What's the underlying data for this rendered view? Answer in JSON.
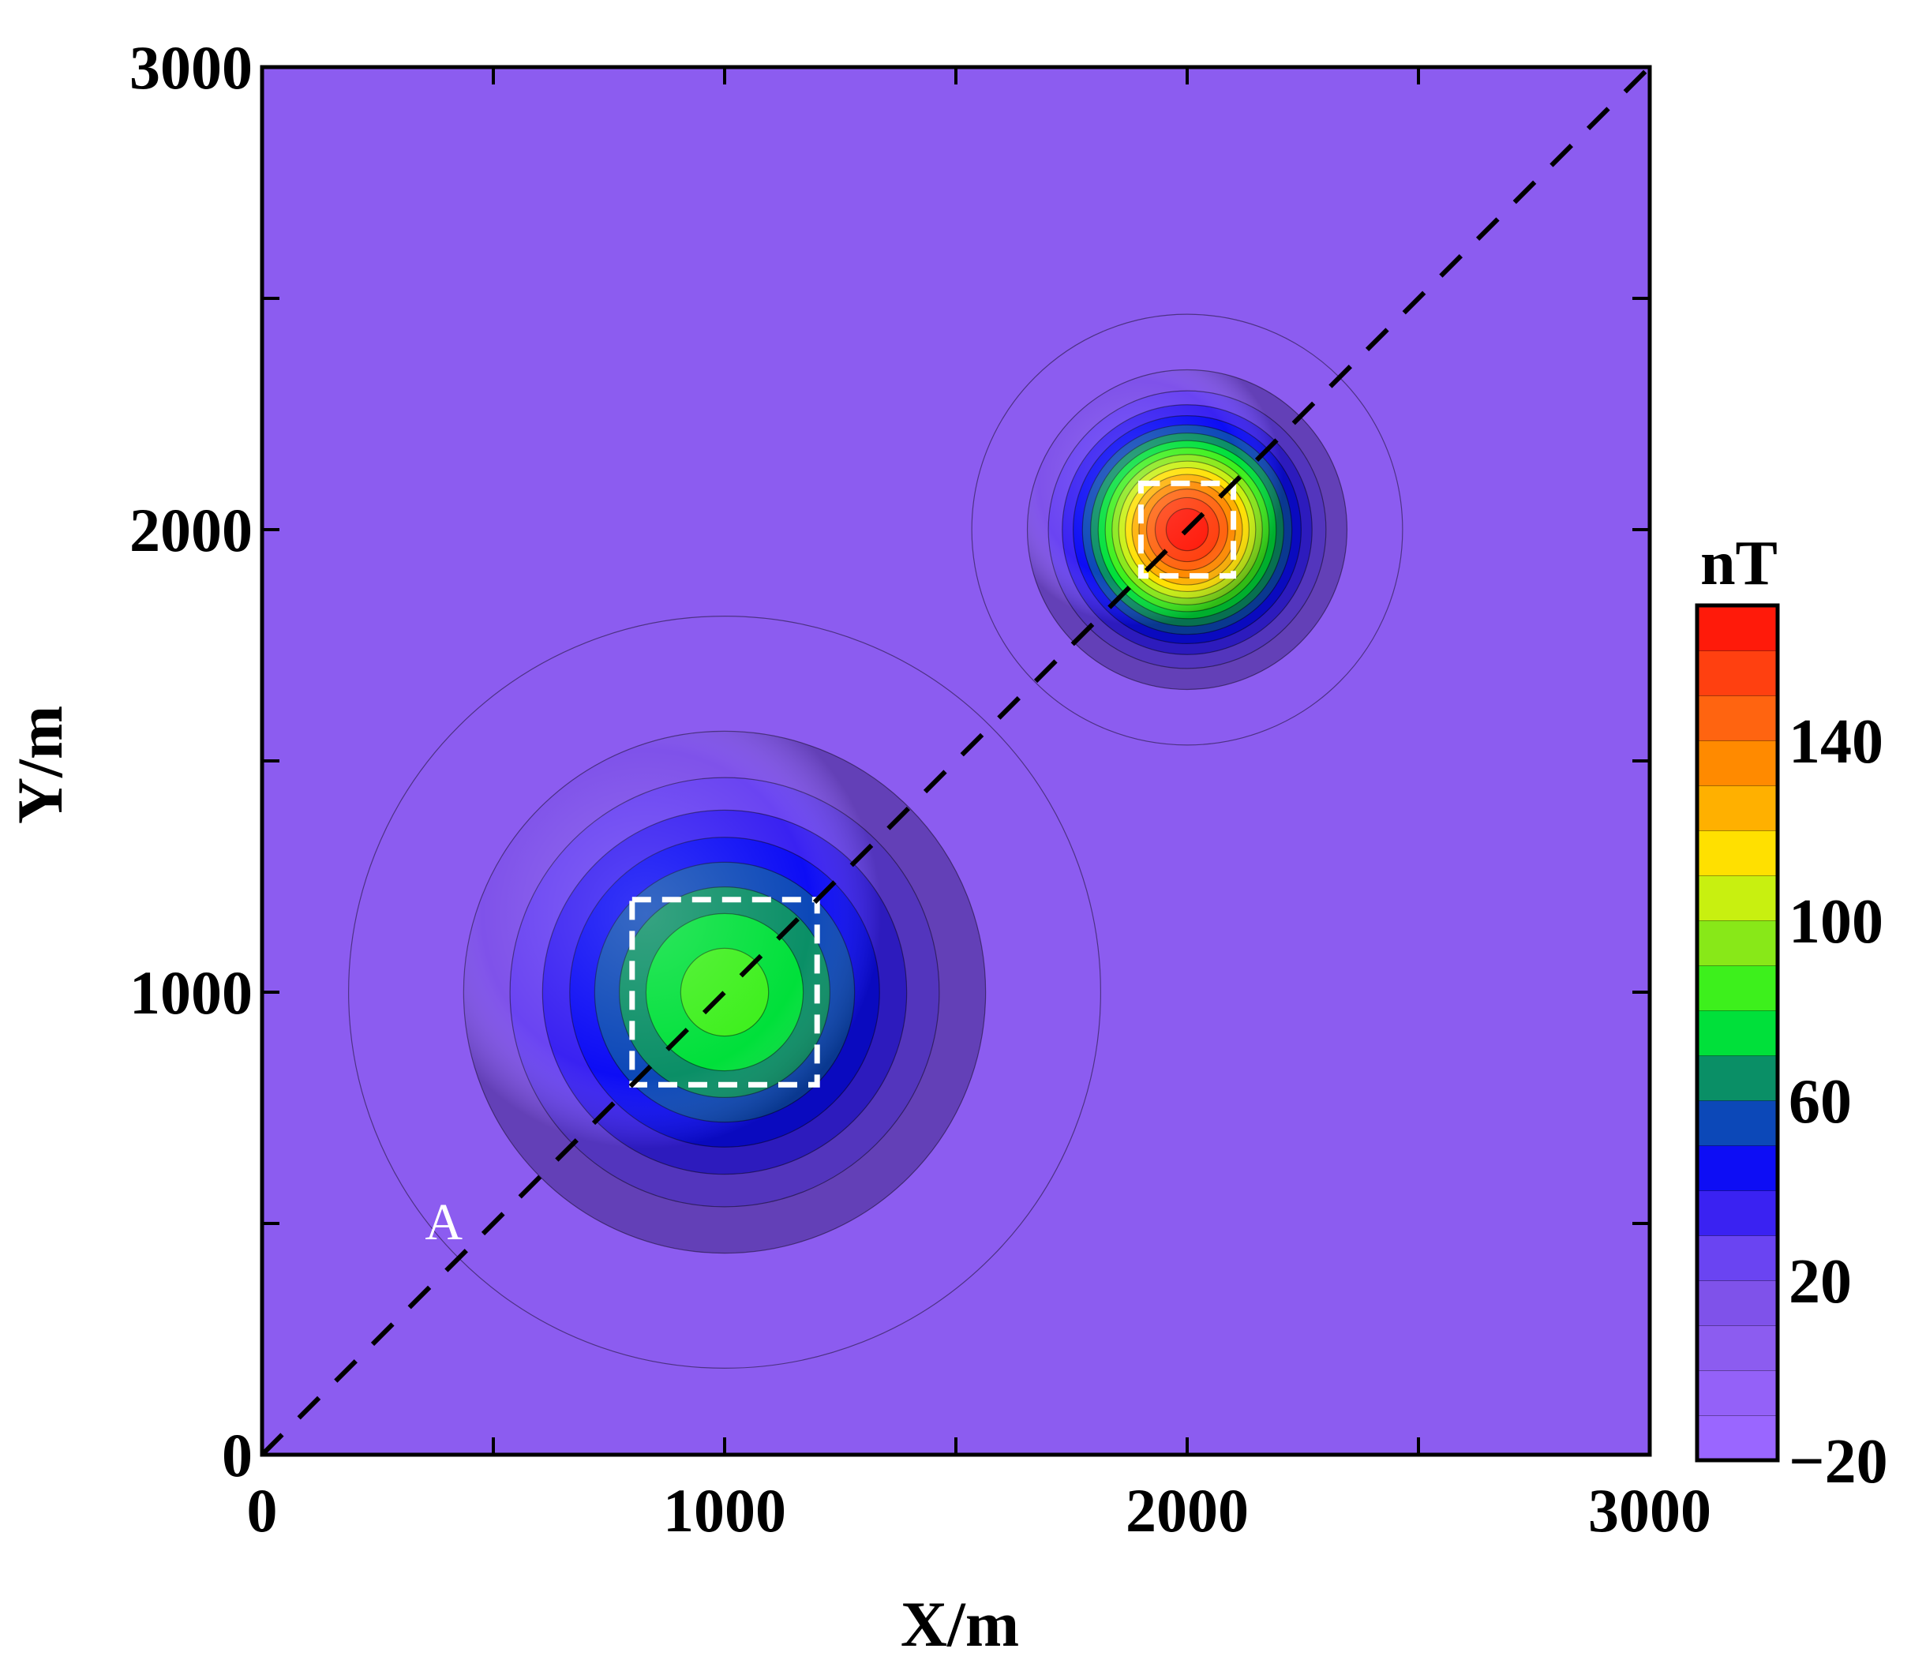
{
  "chart_data": {
    "type": "heatmap",
    "title": "",
    "xlabel": "X/m",
    "ylabel": "Y/m",
    "xlim": [
      0,
      3000
    ],
    "ylim": [
      0,
      3000
    ],
    "x_ticks": [
      0,
      1000,
      2000,
      3000
    ],
    "y_ticks": [
      0,
      1000,
      2000,
      3000
    ],
    "x_ticks_minor": [
      500,
      1500,
      2500
    ],
    "y_ticks_minor": [
      500,
      1500,
      2500
    ],
    "background_value_nT": 0,
    "anomalies": [
      {
        "center": [
          1000,
          1000
        ],
        "peak_nT": 85,
        "radius_m": 600
      },
      {
        "center": [
          2000,
          2000
        ],
        "peak_nT": 168,
        "radius_m": 320
      }
    ],
    "bodies": [
      {
        "x_range": [
          800,
          1200
        ],
        "y_range": [
          800,
          1200
        ]
      },
      {
        "x_range": [
          1900,
          2100
        ],
        "y_range": [
          1900,
          2100
        ]
      }
    ],
    "profile": {
      "label": "A",
      "start": [
        0,
        0
      ],
      "end": [
        3000,
        3000
      ],
      "label_position": [
        400,
        500
      ]
    },
    "colorbar": {
      "title": "nT",
      "min": -20,
      "max": 170,
      "levels": [
        -20,
        -10,
        0,
        10,
        20,
        30,
        40,
        50,
        60,
        70,
        80,
        90,
        100,
        110,
        120,
        130,
        140,
        150,
        160,
        170
      ],
      "colors": [
        "#9a66ff",
        "#9461f8",
        "#8c5cf0",
        "#7f52ea",
        "#6a44f2",
        "#3a22f2",
        "#0d0df5",
        "#0c48b8",
        "#0a8f66",
        "#00e03a",
        "#3df01c",
        "#88e818",
        "#c8f010",
        "#ffe000",
        "#ffb000",
        "#ff8a00",
        "#ff6410",
        "#ff4010",
        "#ff1a0a"
      ],
      "tick_labels": [
        "-20",
        "20",
        "60",
        "100",
        "140"
      ],
      "tick_values": [
        -20,
        20,
        60,
        100,
        140
      ]
    }
  }
}
